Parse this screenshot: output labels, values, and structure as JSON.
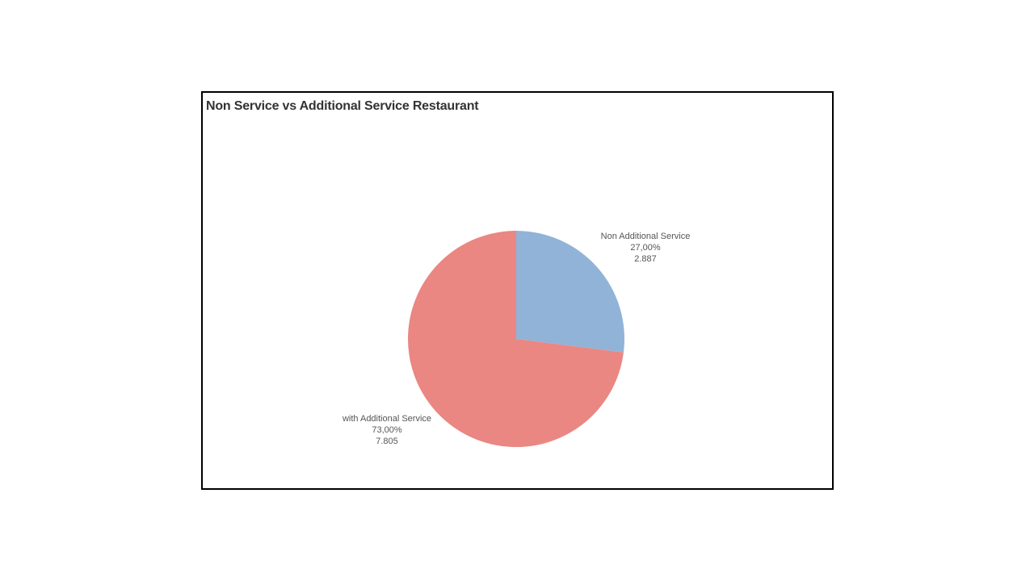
{
  "chart_data": {
    "type": "pie",
    "title": "Non Service vs Additional Service Restaurant",
    "slices": [
      {
        "name": "Non Additional Service",
        "percent_label": "27,00%",
        "count_label": "2.887",
        "value": 2887,
        "color": "#92B3D8"
      },
      {
        "name": "with Additional Service",
        "percent_label": "73,00%",
        "count_label": "7.805",
        "value": 7805,
        "color": "#EA8782"
      }
    ],
    "legend": "none"
  }
}
